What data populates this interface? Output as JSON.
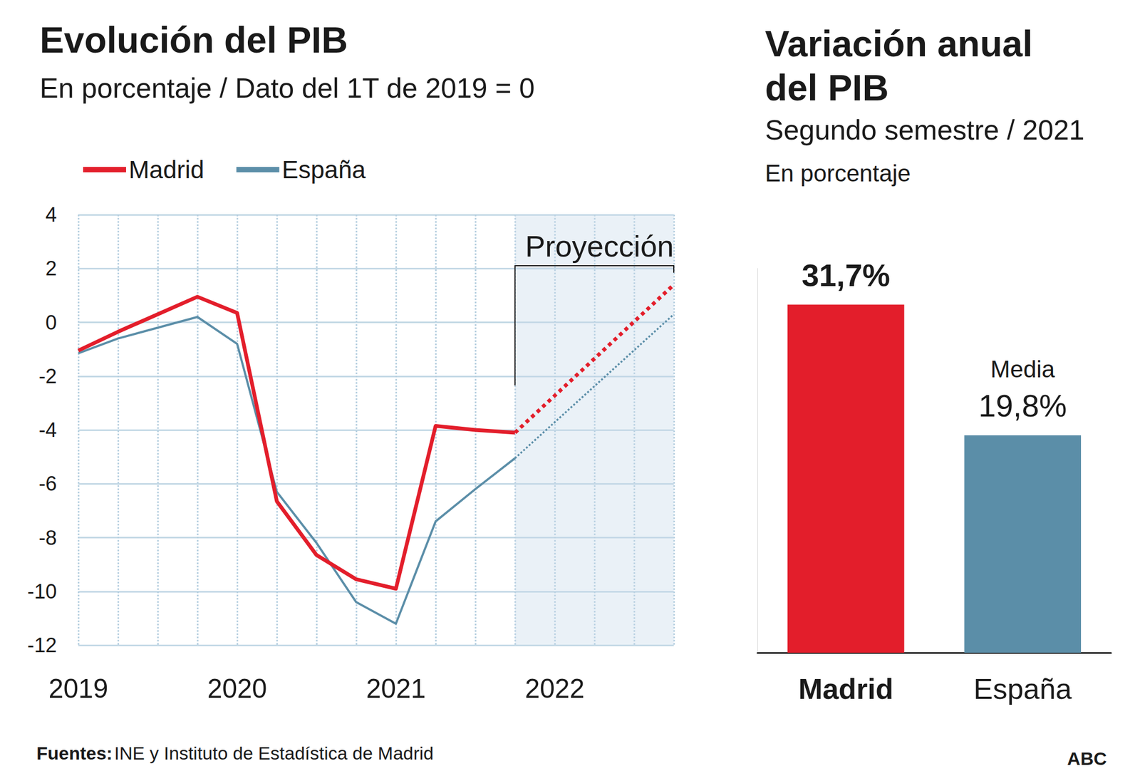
{
  "chart_data": [
    {
      "type": "line",
      "title": "Evolución del PIB",
      "subtitle": "En porcentaje / Dato del 1T de 2019 = 0",
      "categories": [
        "2019",
        null,
        null,
        null,
        "2020",
        null,
        null,
        null,
        "2021",
        null,
        null,
        null,
        "2022",
        null,
        null,
        null
      ],
      "series": [
        {
          "name": "Madrid",
          "color": "#e31e2b",
          "line_style": "solid",
          "values": [
            -1.05,
            -0.35,
            0.3,
            0.95,
            0.35,
            -6.65,
            -8.65,
            -9.55,
            -9.9,
            -3.85,
            -4.0,
            -4.1,
            null,
            null,
            null,
            null
          ]
        },
        {
          "name": "España",
          "color": "#5b8ea8",
          "line_style": "solid",
          "values": [
            -1.15,
            -0.6,
            -0.2,
            0.2,
            -0.8,
            -6.3,
            -8.2,
            -10.4,
            -11.2,
            -7.4,
            -6.2,
            -5.05,
            null,
            null,
            null,
            null
          ]
        },
        {
          "name": "Madrid",
          "color": "#e31e2b",
          "line_style": "dotted",
          "values": [
            null,
            null,
            null,
            null,
            null,
            null,
            null,
            null,
            null,
            null,
            null,
            -4.1,
            null,
            null,
            null,
            1.4
          ]
        },
        {
          "name": "España",
          "color": "#5b8ea8",
          "line_style": "dotted",
          "values": [
            null,
            null,
            null,
            null,
            null,
            null,
            null,
            null,
            null,
            null,
            null,
            -5.05,
            null,
            null,
            null,
            0.3
          ]
        }
      ],
      "annotations": [
        {
          "text": "Proyección"
        }
      ],
      "ylim": [
        -12,
        4
      ],
      "yticks": [
        -12,
        -10,
        -8,
        -6,
        -4,
        -2,
        0,
        2,
        4
      ],
      "grid": true,
      "legend": "top-left"
    },
    {
      "type": "bar",
      "title": "Variación anual del PIB",
      "subtitle": "Segundo semestre / 2021",
      "y_label": "En porcentaje",
      "categories": [
        "Madrid",
        "España"
      ],
      "values": [
        31.7,
        19.8
      ],
      "value_labels": [
        "31,7%",
        "19,8%"
      ],
      "colors": [
        "#e31e2b",
        "#5b8ea8"
      ],
      "annotations": [
        {
          "text": "Media",
          "category": "España"
        }
      ],
      "ylim": [
        0,
        35
      ],
      "yticks": [],
      "data_labels": true,
      "tick_labels": "x",
      "grid": false
    }
  ],
  "footer": {
    "source_label": "Fuentes:",
    "source": "INE y Instituto de Estadística de Madrid",
    "credit": "ABC"
  }
}
